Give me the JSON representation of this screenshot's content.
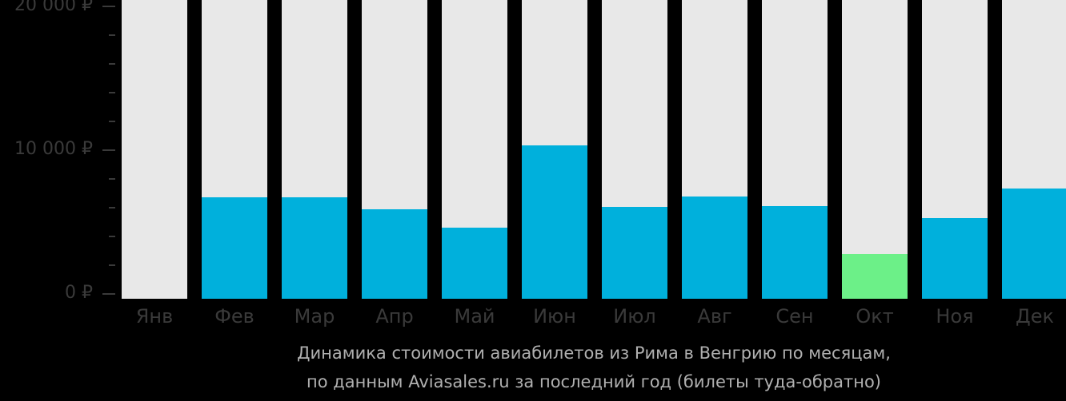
{
  "chart_data": {
    "type": "bar",
    "title": "Динамика стоимости авиабилетов из Рима в Венгрию по месяцам, по данным Aviasales.ru за последний год (билеты туда-обратно)",
    "caption_lines": [
      "Динамика стоимости авиабилетов из Рима в Венгрию по месяцам,",
      "по данным Aviasales.ru за последний год (билеты туда-обратно)"
    ],
    "xlabel": "",
    "ylabel": "",
    "categories": [
      "Янв",
      "Фев",
      "Мар",
      "Апр",
      "Май",
      "Июн",
      "Июл",
      "Авг",
      "Сен",
      "Окт",
      "Ноя",
      "Дек"
    ],
    "values": [
      0,
      6700,
      6720,
      5890,
      4610,
      10330,
      6060,
      6780,
      6110,
      2780,
      5280,
      7330
    ],
    "highlight": {
      "category": "Окт",
      "note": "minimum price"
    },
    "ylim": [
      0,
      20000
    ],
    "yticks": [
      {
        "value": 20000,
        "label": "20 000 ₽"
      },
      {
        "value": 10000,
        "label": "10 000 ₽"
      },
      {
        "value": 0,
        "label": "0 ₽"
      }
    ],
    "minor_ticks_per_major": 5,
    "grid": false,
    "legend": null,
    "colors": {
      "bar": "#00b0dc",
      "bar_min": "#6cf088",
      "bar_background": "#e8e8e8",
      "background": "#000000",
      "axis_text": "#3a3a3a",
      "caption_text": "#b0b0b0"
    }
  }
}
